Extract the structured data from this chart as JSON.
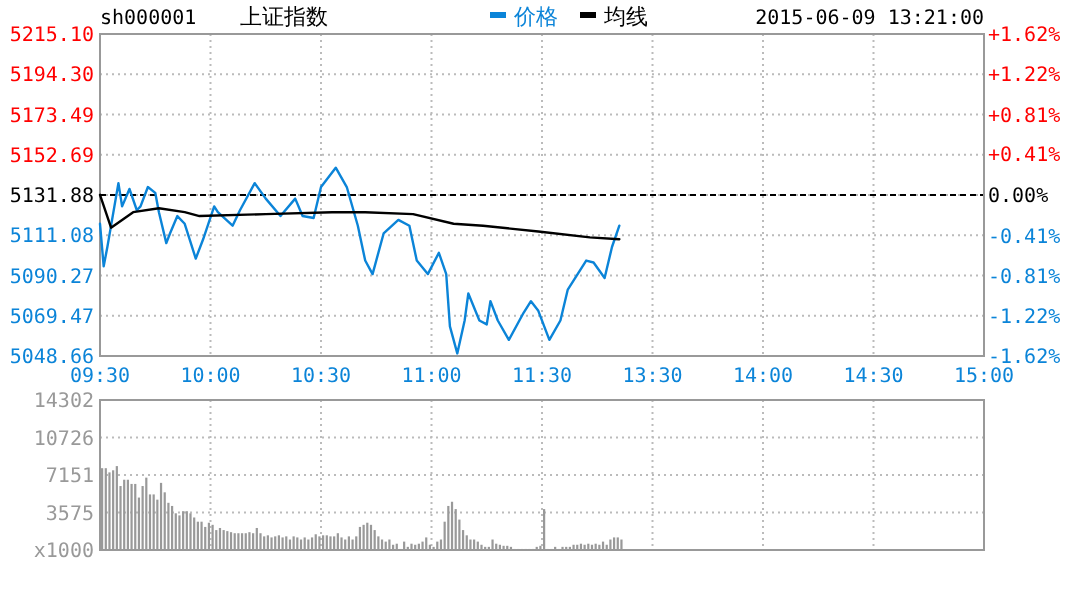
{
  "chart_data": [
    {
      "type": "line",
      "title": "上证指数",
      "subtitle": "sh000001",
      "annotations": [
        "2015-06-09 13:21:00"
      ],
      "legend": "top",
      "grid": true,
      "categories": [
        "09:30",
        null,
        null,
        null,
        null,
        null,
        null,
        null,
        null,
        null,
        null,
        null,
        null,
        null,
        null,
        null,
        null,
        null,
        null,
        null,
        null,
        null,
        null,
        null,
        null,
        null,
        null,
        null,
        null,
        null,
        "10:00",
        null,
        null,
        null,
        null,
        null,
        null,
        null,
        null,
        null,
        null,
        null,
        null,
        null,
        null,
        null,
        null,
        null,
        null,
        null,
        null,
        null,
        null,
        null,
        null,
        null,
        null,
        null,
        null,
        null,
        "10:30",
        null,
        null,
        null,
        null,
        null,
        null,
        null,
        null,
        null,
        null,
        null,
        null,
        null,
        null,
        null,
        null,
        null,
        null,
        null,
        null,
        null,
        null,
        null,
        null,
        null,
        null,
        null,
        null,
        null,
        "11:00",
        null,
        null,
        null,
        null,
        null,
        null,
        null,
        null,
        null,
        null,
        null,
        null,
        null,
        null,
        null,
        null,
        null,
        null,
        null,
        null,
        null,
        null,
        null,
        null,
        null,
        null,
        null,
        null,
        null,
        "11:30",
        null,
        null,
        null,
        null,
        null,
        null,
        null,
        null,
        null,
        null,
        null,
        null,
        null,
        null,
        null,
        null,
        null,
        null,
        null,
        null,
        null,
        null,
        null,
        null,
        null,
        null,
        null,
        null,
        null,
        "13:30",
        null,
        null,
        null,
        null,
        null,
        null,
        null,
        null,
        null,
        null,
        null,
        null,
        null,
        null,
        null,
        null,
        null,
        null,
        null,
        null,
        null,
        null,
        null,
        null,
        null,
        null,
        null,
        null,
        null,
        "14:00",
        null,
        null,
        null,
        null,
        null,
        null,
        null,
        null,
        null,
        null,
        null,
        null,
        null,
        null,
        null,
        null,
        null,
        null,
        null,
        null,
        null,
        null,
        null,
        null,
        null,
        null,
        null,
        null,
        null,
        "14:30",
        null,
        null,
        null,
        null,
        null,
        null,
        null,
        null,
        null,
        null,
        null,
        null,
        null,
        null,
        null,
        null,
        null,
        null,
        null,
        null,
        null,
        null,
        null,
        null,
        null,
        null,
        null,
        null,
        null,
        "15:00"
      ],
      "ylim": [
        5048.66,
        5215.1
      ],
      "yticks": [
        {
          "value": 5048.66,
          "label": "5048.66"
        },
        {
          "value": 5069.47,
          "label": "5069.47"
        },
        {
          "value": 5090.27,
          "label": "5090.27"
        },
        {
          "value": 5111.08,
          "label": "5111.08"
        },
        {
          "value": 5131.88,
          "label": "5131.88"
        },
        {
          "value": 5152.69,
          "label": "5152.69"
        },
        {
          "value": 5173.49,
          "label": "5173.49"
        },
        {
          "value": 5194.3,
          "label": "5194.30"
        },
        {
          "value": 5215.1,
          "label": "5215.10"
        }
      ],
      "y2lim": [
        -1.62,
        1.62
      ],
      "y2ticks": [
        {
          "value": -1.62,
          "label": "-1.62%"
        },
        {
          "value": -1.22,
          "label": "-1.22%"
        },
        {
          "value": -0.81,
          "label": "-0.81%"
        },
        {
          "value": -0.41,
          "label": "-0.41%"
        },
        {
          "value": 0,
          "label": "0.00%"
        },
        {
          "value": 0.41,
          "label": "+0.41%"
        },
        {
          "value": 0.81,
          "label": "+0.81%"
        },
        {
          "value": 1.22,
          "label": "+1.22%"
        },
        {
          "value": 1.62,
          "label": "+1.62%"
        }
      ],
      "ref_lines": [
        {
          "axis": "y",
          "value": 5131.88,
          "color": "#000000",
          "line_style": "dashed"
        }
      ],
      "series": [
        {
          "name": "价格",
          "color": "#0b84d8",
          "values": [
            5117,
            5095,
            5105,
            null,
            null,
            5138,
            5126,
            null,
            5135,
            null,
            5124,
            5126,
            null,
            5136,
            null,
            5133,
            5123,
            null,
            5107,
            5112,
            null,
            5121,
            null,
            5117,
            null,
            null,
            5099,
            null,
            5109,
            null,
            null,
            5126,
            5123,
            null,
            null,
            null,
            5116,
            null,
            5124,
            null,
            null,
            null,
            5138,
            null,
            null,
            5130,
            null,
            null,
            null,
            5121,
            null,
            null,
            null,
            5130,
            null,
            5121,
            null,
            null,
            5120,
            null,
            5136,
            null,
            null,
            null,
            5146,
            null,
            null,
            5136,
            null,
            null,
            5116,
            null,
            5098,
            null,
            5091,
            null,
            null,
            5112,
            null,
            null,
            null,
            5119,
            null,
            null,
            5116,
            null,
            5098,
            null,
            null,
            5091,
            null,
            null,
            5102,
            null,
            5091,
            5064,
            null,
            5050,
            null,
            5067,
            5081,
            null,
            null,
            5067,
            null,
            5065,
            5077,
            null,
            5067,
            null,
            null,
            5057,
            null,
            null,
            null,
            5071,
            null,
            5077,
            null,
            5072,
            null,
            null,
            5057,
            null,
            null,
            5067,
            null,
            5083,
            null,
            null,
            null,
            null,
            5098,
            null,
            5097,
            null,
            null,
            5089,
            null,
            5105,
            null,
            5116,
            null,
            null,
            null,
            null,
            null,
            null,
            null,
            null,
            null,
            null,
            null,
            null,
            null,
            null,
            null,
            null,
            null,
            null,
            null,
            null,
            null,
            null,
            null,
            null,
            null,
            null,
            null,
            null,
            null,
            null,
            null,
            null,
            null,
            null,
            null,
            null,
            null,
            null,
            null,
            null,
            null,
            null,
            null,
            null,
            null,
            null,
            null,
            null,
            null,
            null,
            null,
            null,
            null,
            null,
            null,
            null,
            null,
            null,
            null,
            null,
            null,
            null,
            null,
            null,
            null,
            null,
            null,
            null,
            null,
            null,
            null,
            null,
            null,
            null,
            null,
            null,
            null,
            null,
            null,
            null,
            null,
            null,
            null,
            null,
            null,
            null,
            null,
            null,
            null,
            null,
            null,
            null,
            null,
            null,
            null,
            null,
            null,
            null,
            null
          ]
        },
        {
          "name": "均线",
          "color": "#000000",
          "values": [
            5132,
            null,
            null,
            5115,
            null,
            null,
            null,
            null,
            null,
            5123,
            null,
            null,
            null,
            null,
            null,
            null,
            5125,
            null,
            null,
            null,
            null,
            null,
            null,
            5123,
            null,
            null,
            null,
            5121,
            null,
            null,
            null,
            null,
            null,
            null,
            null,
            null,
            null,
            null,
            null,
            null,
            null,
            null,
            null,
            null,
            null,
            5122,
            null,
            null,
            null,
            null,
            null,
            null,
            null,
            null,
            null,
            null,
            null,
            null,
            null,
            null,
            null,
            null,
            null,
            5123,
            null,
            null,
            null,
            null,
            null,
            null,
            null,
            null,
            5123,
            null,
            null,
            null,
            null,
            null,
            null,
            null,
            null,
            null,
            null,
            null,
            null,
            5122,
            null,
            null,
            null,
            null,
            null,
            null,
            null,
            null,
            null,
            null,
            5117,
            null,
            null,
            null,
            null,
            null,
            null,
            null,
            5116,
            null,
            null,
            null,
            null,
            null,
            null,
            null,
            null,
            null,
            null,
            null,
            null,
            null,
            null,
            5113,
            null,
            null,
            null,
            null,
            null,
            null,
            null,
            null,
            null,
            null,
            null,
            null,
            null,
            5110,
            null,
            null,
            null,
            null,
            null,
            null,
            null,
            5109,
            null,
            null,
            null,
            null,
            null,
            null,
            null,
            null,
            null,
            null,
            null,
            null,
            null,
            null,
            null,
            null,
            null,
            null,
            null,
            null,
            null,
            null,
            null,
            null,
            null,
            null,
            null,
            null,
            null,
            null,
            null,
            null,
            null,
            null,
            null,
            null,
            null,
            null,
            null,
            null,
            null,
            null,
            null,
            null,
            null,
            null,
            null,
            null,
            null,
            null,
            null,
            null,
            null,
            null,
            null,
            null,
            null,
            null,
            null,
            null,
            null,
            null,
            null,
            null,
            null,
            null,
            null,
            null,
            null,
            null,
            null,
            null,
            null,
            null,
            null,
            null,
            null,
            null,
            null,
            null,
            null,
            null,
            null,
            null,
            null,
            null,
            null,
            null,
            null,
            null,
            null,
            null,
            null,
            null,
            null,
            null,
            null,
            null,
            null
          ]
        }
      ]
    },
    {
      "type": "bar",
      "grid": true,
      "tick_labels": "y",
      "categories": [
        null,
        null,
        null,
        null,
        null,
        null,
        null,
        null,
        null,
        null,
        null,
        null,
        null,
        null,
        null,
        null,
        null,
        null,
        null,
        null,
        null,
        null,
        null,
        null,
        null,
        null,
        null,
        null,
        null,
        null,
        null,
        null,
        null,
        null,
        null,
        null,
        null,
        null,
        null,
        null,
        null,
        null,
        null,
        null,
        null,
        null,
        null,
        null,
        null,
        null,
        null,
        null,
        null,
        null,
        null,
        null,
        null,
        null,
        null,
        null,
        null,
        null,
        null,
        null,
        null,
        null,
        null,
        null,
        null,
        null,
        null,
        null,
        null,
        null,
        null,
        null,
        null,
        null,
        null,
        null,
        null,
        null,
        null,
        null,
        null,
        null,
        null,
        null,
        null,
        null,
        null,
        null,
        null,
        null,
        null,
        null,
        null,
        null,
        null,
        null,
        null,
        null,
        null,
        null,
        null,
        null,
        null,
        null,
        null,
        null,
        null,
        null,
        null,
        null,
        null,
        null,
        null,
        null,
        null,
        null,
        null,
        null,
        null,
        null,
        null,
        null,
        null,
        null,
        null,
        null,
        null,
        null,
        null,
        null,
        null,
        null,
        null,
        null,
        null,
        null,
        null,
        null,
        null,
        null,
        null,
        null,
        null,
        null,
        null,
        null,
        null,
        null,
        null,
        null,
        null,
        null,
        null,
        null,
        null,
        null,
        null,
        null,
        null,
        null,
        null,
        null,
        null,
        null,
        null,
        null,
        null,
        null,
        null,
        null,
        null,
        null,
        null,
        null,
        null,
        null,
        null,
        null,
        null,
        null,
        null,
        null,
        null,
        null,
        null,
        null,
        null,
        null,
        null,
        null,
        null,
        null,
        null,
        null,
        null,
        null,
        null,
        null,
        null,
        null,
        null,
        null,
        null,
        null,
        null,
        null,
        null,
        null,
        null,
        null,
        null,
        null,
        null,
        null,
        null,
        null,
        null,
        null,
        null,
        null,
        null,
        null,
        null,
        null,
        null,
        null,
        null,
        null,
        null,
        null,
        null,
        null,
        null,
        null,
        null,
        null
      ],
      "ylim": [
        0,
        14302
      ],
      "yticks": [
        {
          "value": 0,
          "label": "x1000"
        },
        3575,
        7151,
        10726,
        14302
      ],
      "series": [
        {
          "color": "#999999",
          "values": [
            7800,
            7800,
            7400,
            7600,
            8000,
            6100,
            6700,
            6700,
            6300,
            6300,
            5000,
            6100,
            6900,
            5300,
            5300,
            4800,
            6400,
            5500,
            4500,
            4200,
            3500,
            3300,
            3700,
            3700,
            3500,
            3100,
            2700,
            2700,
            2200,
            2600,
            2400,
            1900,
            2100,
            1900,
            1800,
            1700,
            1600,
            1600,
            1600,
            1600,
            1700,
            1600,
            2100,
            1600,
            1300,
            1400,
            1200,
            1300,
            1400,
            1200,
            1300,
            1000,
            1300,
            1200,
            1000,
            1200,
            1000,
            1200,
            1500,
            1300,
            1400,
            1400,
            1300,
            1300,
            1600,
            1200,
            1000,
            1300,
            1000,
            1300,
            2200,
            2400,
            2600,
            2400,
            1900,
            1300,
            1000,
            800,
            1000,
            500,
            600,
            100,
            800,
            300,
            600,
            500,
            600,
            800,
            1200,
            500,
            300,
            800,
            1000,
            2700,
            4200,
            4600,
            3900,
            2900,
            1900,
            1400,
            1000,
            1000,
            800,
            500,
            300,
            300,
            1000,
            600,
            500,
            400,
            400,
            300,
            100,
            100,
            100,
            100,
            100,
            100,
            300,
            400,
            3900,
            100,
            100,
            300,
            100,
            300,
            300,
            300,
            500,
            500,
            600,
            500,
            600,
            500,
            600,
            500,
            800,
            500,
            1000,
            1200,
            1200,
            1000,
            null,
            null,
            null,
            null,
            null,
            null,
            null,
            null,
            null,
            null,
            null,
            null,
            null,
            null,
            null,
            null,
            null,
            null,
            null,
            null,
            null,
            null,
            null,
            null,
            null,
            null,
            null,
            null,
            null,
            null,
            null,
            null,
            null,
            null,
            null,
            null,
            null,
            null,
            null,
            null,
            null,
            null,
            null,
            null,
            null,
            null,
            null,
            null,
            null,
            null,
            null,
            null,
            null,
            null,
            null,
            null,
            null,
            null,
            null,
            null,
            null,
            null,
            null,
            null,
            null,
            null,
            null,
            null,
            null,
            null,
            null,
            null,
            null,
            null,
            null,
            null,
            null,
            null,
            null,
            null,
            null,
            null,
            null,
            null,
            null,
            null,
            null,
            null,
            null,
            null,
            null,
            null,
            null,
            null,
            null,
            null,
            null,
            null
          ]
        }
      ]
    }
  ]
}
